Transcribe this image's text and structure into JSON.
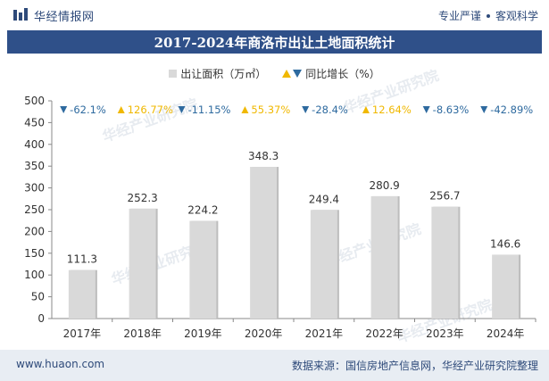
{
  "header": {
    "brand_name": "华经情报网",
    "tagline_left": "专业严谨",
    "tagline_right": "客观科学"
  },
  "footer": {
    "url": "www.huaon.com",
    "source": "数据来源：国信房地产信息网，华经产业研究院整理"
  },
  "watermark": "华经产业研究院",
  "colors": {
    "title_bg": "#2f5089",
    "bar": "#d9d9d9",
    "up": "#f0b800",
    "down": "#2e6a9f"
  },
  "chart_data": {
    "type": "bar",
    "title": "2017-2024年商洛市出让土地面积统计",
    "categories": [
      "2017年",
      "2018年",
      "2019年",
      "2020年",
      "2021年",
      "2022年",
      "2023年",
      "2024年"
    ],
    "series": [
      {
        "name": "出让面积（万㎡）",
        "values": [
          111.3,
          252.3,
          224.2,
          348.3,
          249.4,
          280.9,
          256.7,
          146.6
        ]
      }
    ],
    "growth": {
      "name": "同比增长（%）",
      "labels": [
        "-62.1%",
        "126.77%",
        "-11.15%",
        "55.37%",
        "-28.4%",
        "12.64%",
        "-8.63%",
        "-42.89%"
      ],
      "direction": [
        "down",
        "up",
        "down",
        "up",
        "down",
        "up",
        "down",
        "down"
      ]
    },
    "yticks": [
      "0",
      "50",
      "100",
      "150",
      "200",
      "250",
      "300",
      "350",
      "400",
      "450",
      "500"
    ],
    "ylim": [
      0,
      500
    ],
    "legend_position": "top-center",
    "grid": false
  }
}
